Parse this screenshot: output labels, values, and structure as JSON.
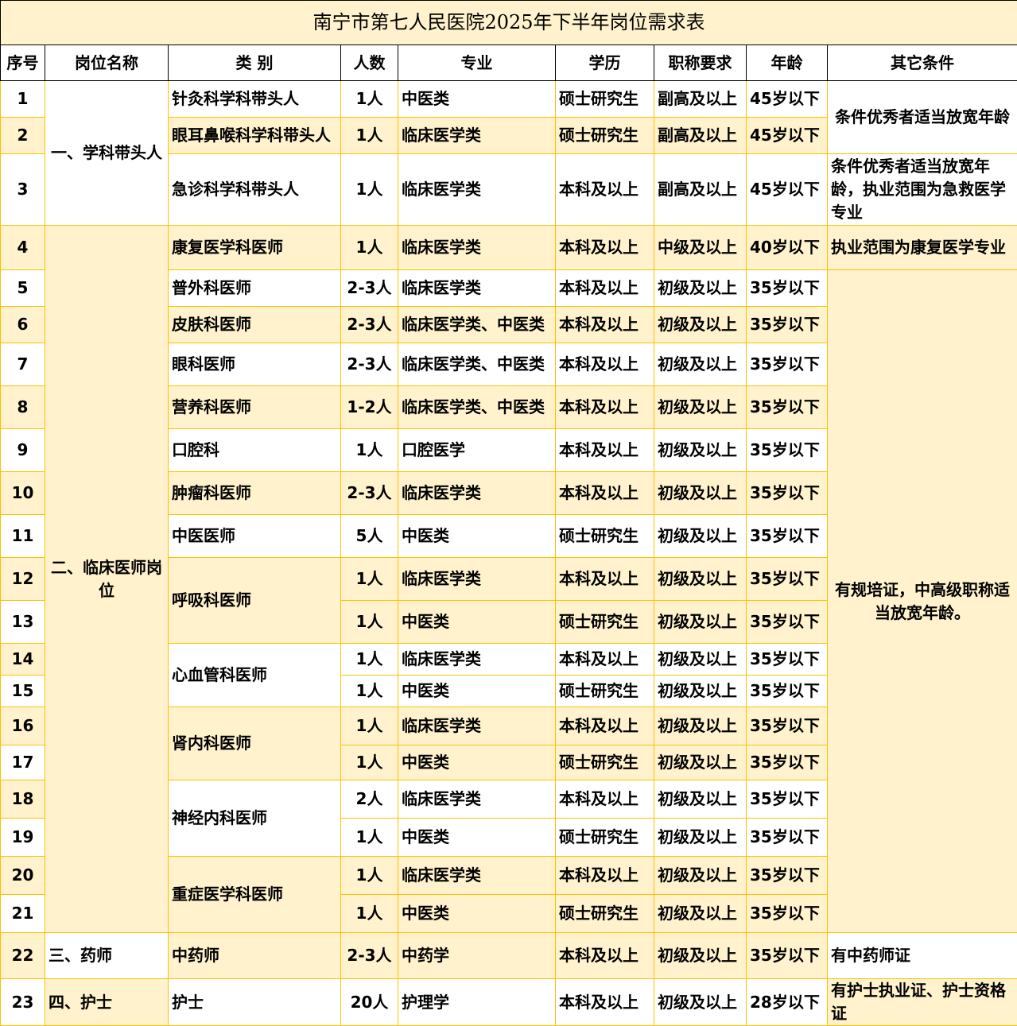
{
  "title": "南宁市第七人民医院2025年下半年岗位需求表",
  "colors": {
    "border": "#FFC000",
    "shade": "#FFF2CC"
  },
  "headers": [
    "序号",
    "岗位名称",
    "类 别",
    "人数",
    "专业",
    "学历",
    "职称要求",
    "年龄",
    "其它条件"
  ],
  "posts": [
    "一、学科带头人",
    "二、临床医师岗位",
    "三、药师",
    "四、护士"
  ],
  "rows": [
    {
      "seq": "1",
      "category": "针灸科学科带头人",
      "count": "1人",
      "major": "中医类",
      "edu": "硕士研究生",
      "rank": "副高及以上",
      "age": "45岁以下",
      "other": "条件优秀者适当放宽年龄"
    },
    {
      "seq": "2",
      "category": "眼耳鼻喉科学科带头人",
      "count": "1人",
      "major": "临床医学类",
      "edu": "硕士研究生",
      "rank": "副高及以上",
      "age": "45岁以下"
    },
    {
      "seq": "3",
      "category": "急诊科学科带头人",
      "count": "1人",
      "major": "临床医学类",
      "edu": "本科及以上",
      "rank": "副高及以上",
      "age": "45岁以下",
      "other": "条件优秀者适当放宽年龄，执业范围为急救医学专业"
    },
    {
      "seq": "4",
      "category": "康复医学科医师",
      "count": "1人",
      "major": "临床医学类",
      "edu": "本科及以上",
      "rank": "中级及以上",
      "age": "40岁以下",
      "other": "执业范围为康复医学专业"
    },
    {
      "seq": "5",
      "category": "普外科医师",
      "count": "2-3人",
      "major": "临床医学类",
      "edu": "本科及以上",
      "rank": "初级及以上",
      "age": "35岁以下",
      "other": "有规培证，中高级职称适当放宽年龄。"
    },
    {
      "seq": "6",
      "category": "皮肤科医师",
      "count": "2-3人",
      "major": "临床医学类、中医类",
      "edu": "本科及以上",
      "rank": "初级及以上",
      "age": "35岁以下"
    },
    {
      "seq": "7",
      "category": "眼科医师",
      "count": "2-3人",
      "major": "临床医学类、中医类",
      "edu": "本科及以上",
      "rank": "初级及以上",
      "age": "35岁以下"
    },
    {
      "seq": "8",
      "category": "营养科医师",
      "count": "1-2人",
      "major": "临床医学类、中医类",
      "edu": "本科及以上",
      "rank": "初级及以上",
      "age": "35岁以下"
    },
    {
      "seq": "9",
      "category": "口腔科",
      "count": "1人",
      "major": "口腔医学",
      "edu": "本科及以上",
      "rank": "初级及以上",
      "age": "35岁以下"
    },
    {
      "seq": "10",
      "category": "肿瘤科医师",
      "count": "2-3人",
      "major": "临床医学类",
      "edu": "本科及以上",
      "rank": "初级及以上",
      "age": "35岁以下"
    },
    {
      "seq": "11",
      "category": "中医医师",
      "count": "5人",
      "major": "中医类",
      "edu": "硕士研究生",
      "rank": "初级及以上",
      "age": "35岁以下"
    },
    {
      "seq": "12",
      "category": "呼吸科医师",
      "count": "1人",
      "major": "临床医学类",
      "edu": "本科及以上",
      "rank": "初级及以上",
      "age": "35岁以下"
    },
    {
      "seq": "13",
      "count": "1人",
      "major": "中医类",
      "edu": "硕士研究生",
      "rank": "初级及以上",
      "age": "35岁以下"
    },
    {
      "seq": "14",
      "category": "心血管科医师",
      "count": "1人",
      "major": "临床医学类",
      "edu": "本科及以上",
      "rank": "初级及以上",
      "age": "35岁以下"
    },
    {
      "seq": "15",
      "count": "1人",
      "major": "中医类",
      "edu": "硕士研究生",
      "rank": "初级及以上",
      "age": "35岁以下"
    },
    {
      "seq": "16",
      "category": "肾内科医师",
      "count": "1人",
      "major": "临床医学类",
      "edu": "本科及以上",
      "rank": "初级及以上",
      "age": "35岁以下"
    },
    {
      "seq": "17",
      "count": "1人",
      "major": "中医类",
      "edu": "硕士研究生",
      "rank": "初级及以上",
      "age": "35岁以下"
    },
    {
      "seq": "18",
      "category": "神经内科医师",
      "count": "2人",
      "major": "临床医学类",
      "edu": "本科及以上",
      "rank": "初级及以上",
      "age": "35岁以下"
    },
    {
      "seq": "19",
      "count": "1人",
      "major": "中医类",
      "edu": "硕士研究生",
      "rank": "初级及以上",
      "age": "35岁以下"
    },
    {
      "seq": "20",
      "category": "重症医学科医师",
      "count": "1人",
      "major": "临床医学类",
      "edu": "本科及以上",
      "rank": "初级及以上",
      "age": "35岁以下"
    },
    {
      "seq": "21",
      "count": "1人",
      "major": "中医类",
      "edu": "硕士研究生",
      "rank": "初级及以上",
      "age": "35岁以下"
    },
    {
      "seq": "22",
      "category": "中药师",
      "count": "2-3人",
      "major": "中药学",
      "edu": "本科及以上",
      "rank": "初级及以上",
      "age": "35岁以下",
      "other": "有中药师证"
    },
    {
      "seq": "23",
      "category": "护士",
      "count": "20人",
      "major": "护理学",
      "edu": "本科及以上",
      "rank": "初级及以上",
      "age": "28岁以下",
      "other": "有护士执业证、护士资格证"
    }
  ]
}
